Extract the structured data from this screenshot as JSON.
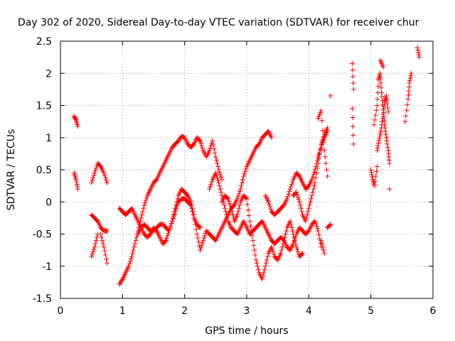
{
  "chart_data": {
    "type": "scatter",
    "title": "Day 302 of 2020, Sidereal Day-to-day VTEC variation (SDTVAR) for receiver chur",
    "xlabel": "GPS time / hours",
    "ylabel": "SDTVAR / TECUs",
    "xlim": [
      0,
      6
    ],
    "ylim": [
      -1.5,
      2.5
    ],
    "xticks": [
      0,
      1,
      2,
      3,
      4,
      5,
      6
    ],
    "xtick_labels": [
      "0",
      "1",
      "2",
      "3",
      "4",
      "5",
      "6"
    ],
    "yticks": [
      -1.5,
      -1,
      -0.5,
      0,
      0.5,
      1,
      1.5,
      2,
      2.5
    ],
    "ytick_labels": [
      "-1.5",
      "-1",
      "-0.5",
      "0",
      "0.5",
      "1",
      "1.5",
      "2",
      "2.5"
    ],
    "grid": true,
    "marker": "+",
    "series": [
      {
        "name": "SDTVAR",
        "color": "#ff0000",
        "segments": [
          {
            "x": [
              0.22,
              0.25,
              0.28
            ],
            "y": [
              1.33,
              1.28,
              1.18
            ]
          },
          {
            "x": [
              0.22,
              0.25,
              0.28
            ],
            "y": [
              0.45,
              0.35,
              0.2
            ]
          },
          {
            "x": [
              0.5,
              0.55,
              0.6,
              0.65,
              0.7,
              0.75
            ],
            "y": [
              0.3,
              0.45,
              0.6,
              0.55,
              0.45,
              0.3
            ]
          },
          {
            "x": [
              0.5,
              0.55,
              0.6,
              0.65,
              0.7,
              0.75
            ],
            "y": [
              -0.2,
              -0.25,
              -0.3,
              -0.4,
              -0.45,
              -0.45
            ]
          },
          {
            "x": [
              0.5,
              0.55,
              0.6
            ],
            "y": [
              -0.85,
              -0.7,
              -0.5
            ]
          },
          {
            "x": [
              0.65,
              0.7,
              0.75
            ],
            "y": [
              -0.5,
              -0.7,
              -0.95
            ]
          },
          {
            "x": [
              0.95,
              1.0,
              1.05,
              1.1,
              1.15,
              1.2,
              1.25,
              1.3,
              1.35,
              1.4,
              1.45,
              1.5,
              1.55,
              1.6,
              1.65,
              1.7,
              1.75,
              1.8,
              1.85,
              1.9,
              1.95,
              2.0,
              2.05,
              2.1,
              2.15,
              2.2,
              2.25,
              2.3,
              2.35,
              2.4,
              2.45,
              2.5,
              2.55,
              2.6
            ],
            "y": [
              -1.28,
              -1.2,
              -1.1,
              -1.0,
              -0.85,
              -0.65,
              -0.45,
              -0.25,
              -0.05,
              0.1,
              0.2,
              0.3,
              0.35,
              0.45,
              0.55,
              0.65,
              0.75,
              0.85,
              0.9,
              0.95,
              1.02,
              1.0,
              0.9,
              0.85,
              0.9,
              1.0,
              0.95,
              0.8,
              0.7,
              0.8,
              0.95,
              0.7,
              0.5,
              0.35
            ]
          },
          {
            "x": [
              0.95,
              1.0,
              1.05,
              1.1,
              1.15,
              1.2,
              1.25,
              1.3,
              1.35,
              1.4,
              1.45,
              1.5,
              1.55,
              1.6,
              1.65,
              1.7,
              1.75,
              1.8,
              1.85,
              1.9,
              1.95,
              2.0,
              2.05,
              2.1,
              2.15,
              2.2,
              2.25,
              2.3,
              2.35,
              2.4,
              2.45,
              2.5,
              2.55,
              2.6,
              2.65,
              2.7,
              2.75,
              2.8,
              2.85,
              2.9,
              2.95,
              3.0,
              3.05,
              3.1,
              3.15,
              3.2,
              3.25,
              3.3,
              3.35,
              3.4
            ],
            "y": [
              -0.1,
              -0.15,
              -0.2,
              -0.15,
              -0.1,
              -0.2,
              -0.3,
              -0.4,
              -0.5,
              -0.55,
              -0.5,
              -0.4,
              -0.45,
              -0.55,
              -0.65,
              -0.6,
              -0.45,
              -0.3,
              -0.1,
              0.1,
              0.2,
              0.15,
              0.1,
              0.0,
              -0.2,
              -0.5,
              -0.75,
              -0.6,
              -0.45,
              -0.5,
              -0.55,
              -0.6,
              -0.5,
              -0.4,
              -0.3,
              -0.2,
              -0.1,
              -0.05,
              0.05,
              0.2,
              0.4,
              0.55,
              0.65,
              0.75,
              0.85,
              0.9,
              1.0,
              1.05,
              1.1,
              1.0
            ]
          },
          {
            "x": [
              1.25,
              1.3,
              1.35,
              1.4,
              1.45,
              1.5,
              1.55,
              1.6,
              1.65,
              1.7,
              1.75,
              1.8,
              1.85,
              1.9,
              1.95,
              2.0,
              2.05,
              2.1,
              2.15,
              2.2,
              2.25
            ],
            "y": [
              -0.5,
              -0.4,
              -0.35,
              -0.4,
              -0.45,
              -0.45,
              -0.4,
              -0.35,
              -0.35,
              -0.4,
              -0.45,
              -0.3,
              -0.15,
              0.0,
              0.05,
              0.05,
              0.0,
              -0.05,
              -0.25,
              -0.35,
              -0.4
            ]
          },
          {
            "x": [
              2.4,
              2.45,
              2.5,
              2.55,
              2.6,
              2.65,
              2.7,
              2.75,
              2.8,
              2.85,
              2.9,
              2.95,
              3.0,
              3.05,
              3.1,
              3.15,
              3.2,
              3.25,
              3.3,
              3.35,
              3.4,
              3.45,
              3.5,
              3.55,
              3.6,
              3.65,
              3.7,
              3.75,
              3.8,
              3.85,
              3.9,
              3.95,
              4.0,
              4.05,
              4.1,
              4.15,
              4.2
            ],
            "y": [
              0.2,
              0.35,
              0.45,
              0.3,
              0.1,
              -0.1,
              -0.3,
              -0.4,
              -0.45,
              -0.5,
              -0.4,
              -0.3,
              -0.4,
              -0.5,
              -0.45,
              -0.4,
              -0.35,
              -0.3,
              -0.4,
              -0.5,
              -0.6,
              -0.65,
              -0.6,
              -0.55,
              -0.6,
              -0.7,
              -0.75,
              -0.65,
              -0.5,
              -0.4,
              -0.45,
              -0.5,
              -0.45,
              -0.35,
              -0.3,
              -0.45,
              -0.7
            ]
          },
          {
            "x": [
              2.6,
              2.65,
              2.7,
              2.75,
              2.8,
              2.85,
              2.9,
              2.95,
              3.0,
              3.05,
              3.1,
              3.15,
              3.2,
              3.25,
              3.3,
              3.35,
              3.4,
              3.45,
              3.5,
              3.55,
              3.6,
              3.65,
              3.7,
              3.75,
              3.8,
              3.85,
              3.9
            ],
            "y": [
              0.0,
              0.1,
              0.05,
              -0.1,
              -0.3,
              -0.2,
              0.0,
              0.1,
              0.05,
              -0.3,
              -0.6,
              -0.9,
              -1.1,
              -1.2,
              -1.0,
              -0.8,
              -0.7,
              -0.85,
              -0.9,
              -0.8,
              -0.6,
              -0.4,
              -0.3,
              -0.5,
              -0.7,
              -0.85,
              -0.8
            ]
          },
          {
            "x": [
              3.3,
              3.35,
              3.4,
              3.45,
              3.5,
              3.55,
              3.6,
              3.65,
              3.7,
              3.75,
              3.8,
              3.85,
              3.9,
              3.95,
              4.0,
              4.05,
              4.1,
              4.15,
              4.2,
              4.25,
              4.3
            ],
            "y": [
              0.1,
              0.0,
              -0.15,
              -0.2,
              -0.15,
              -0.1,
              -0.05,
              0.05,
              0.2,
              0.35,
              0.45,
              0.4,
              0.3,
              0.2,
              0.25,
              0.35,
              0.5,
              0.7,
              0.85,
              1.0,
              1.1
            ]
          },
          {
            "x": [
              3.75,
              3.8,
              3.85,
              3.9,
              3.95,
              4.0,
              4.05,
              4.1,
              4.15,
              4.2,
              4.25,
              4.3
            ],
            "y": [
              0.1,
              0.15,
              0.0,
              -0.2,
              -0.3,
              -0.1,
              0.1,
              0.3,
              0.6,
              0.9,
              1.05,
              1.15
            ]
          },
          {
            "x": [
              4.15,
              4.2,
              4.25,
              4.3
            ],
            "y": [
              1.3,
              1.42,
              0.8,
              0.4
            ]
          },
          {
            "x": [
              4.3,
              4.35
            ],
            "y": [
              -0.4,
              -0.35
            ]
          },
          {
            "x": [
              4.2,
              4.25
            ],
            "y": [
              -0.6,
              -0.8
            ]
          },
          {
            "x": [
              4.35
            ],
            "y": [
              1.65
            ]
          },
          {
            "x": [
              4.7,
              4.72
            ],
            "y": [
              2.15,
              1.75
            ]
          },
          {
            "x": [
              4.7,
              4.72
            ],
            "y": [
              1.45,
              0.9
            ]
          },
          {
            "x": [
              5.0,
              5.03,
              5.06,
              5.1
            ],
            "y": [
              0.5,
              0.35,
              0.25,
              0.55
            ]
          },
          {
            "x": [
              5.05,
              5.1,
              5.12,
              5.15,
              5.17,
              5.2,
              5.22,
              5.25,
              5.28,
              5.3
            ],
            "y": [
              1.2,
              1.5,
              1.9,
              2.0,
              1.7,
              1.45,
              1.2,
              1.0,
              0.8,
              0.6
            ]
          },
          {
            "x": [
              5.1,
              5.13,
              5.16,
              5.19,
              5.22,
              5.25,
              5.28
            ],
            "y": [
              0.8,
              0.95,
              1.1,
              1.3,
              1.55,
              1.65,
              1.4
            ]
          },
          {
            "x": [
              5.15,
              5.2
            ],
            "y": [
              2.2,
              2.1
            ]
          },
          {
            "x": [
              5.3
            ],
            "y": [
              0.2
            ]
          },
          {
            "x": [
              5.55,
              5.6,
              5.62,
              5.65
            ],
            "y": [
              1.25,
              1.6,
              1.85,
              2.0
            ]
          },
          {
            "x": [
              5.75,
              5.78
            ],
            "y": [
              2.4,
              2.25
            ]
          }
        ]
      }
    ]
  }
}
